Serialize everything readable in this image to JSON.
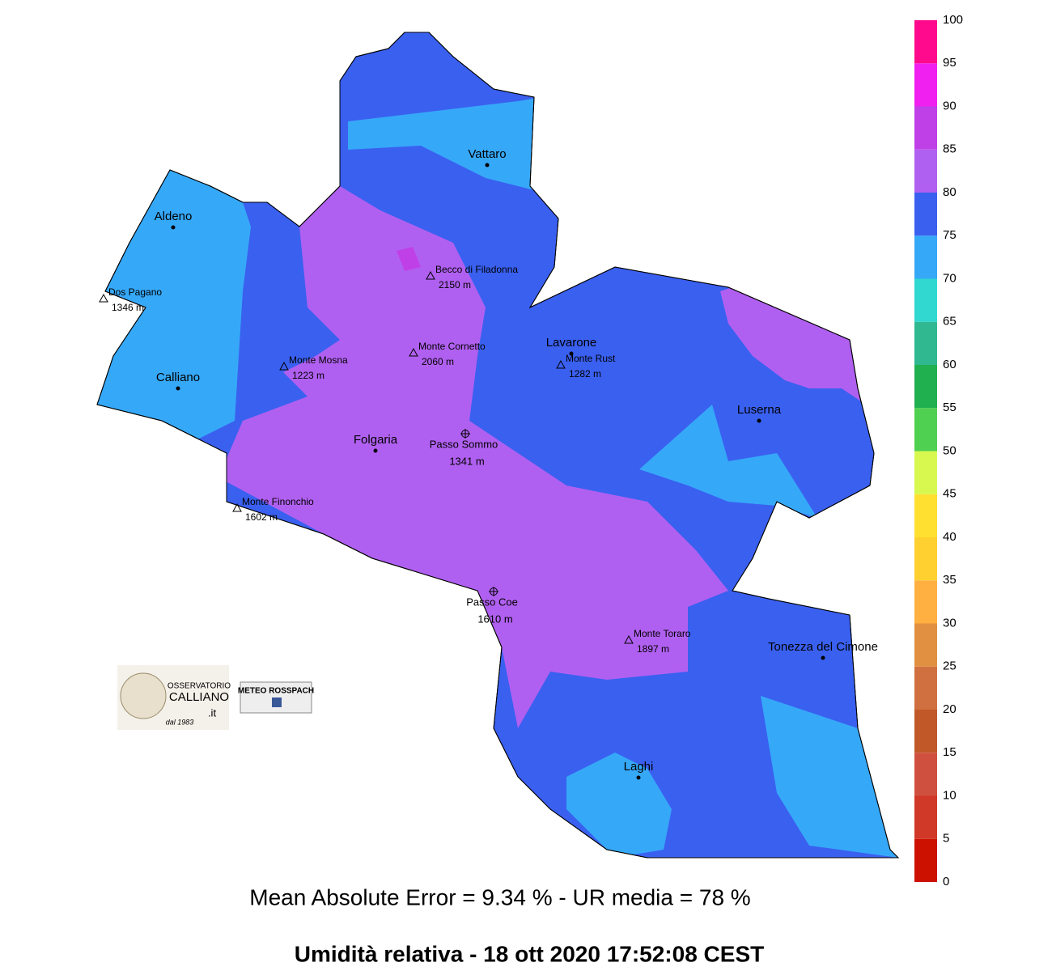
{
  "map": {
    "colorbar": {
      "ticks": [
        0,
        5,
        10,
        15,
        20,
        25,
        30,
        35,
        40,
        45,
        50,
        55,
        60,
        65,
        70,
        75,
        80,
        85,
        90,
        95,
        100
      ],
      "colors": [
        "#cc1100",
        "#d03828",
        "#d05040",
        "#c05828",
        "#d07040",
        "#e09040",
        "#ffb040",
        "#ffd030",
        "#ffe030",
        "#d8f850",
        "#50d050",
        "#20b050",
        "#30b890",
        "#30d8d0",
        "#36a8f8",
        "#3a60f0",
        "#b060f0",
        "#c040e8",
        "#f020f0",
        "#ff0a8c"
      ]
    },
    "places": [
      {
        "name": "Vattaro"
      },
      {
        "name": "Aldeno"
      },
      {
        "name": "Calliano"
      },
      {
        "name": "Folgaria"
      },
      {
        "name": "Lavarone"
      },
      {
        "name": "Luserna"
      },
      {
        "name": "Tonezza del Cimone"
      },
      {
        "name": "Laghi"
      }
    ],
    "peaks": [
      {
        "name": "Becco di Filadonna",
        "elevation": "2150 m"
      },
      {
        "name": "Dos Pagano",
        "elevation": "1346 m"
      },
      {
        "name": "Monte Cornetto",
        "elevation": "2060 m"
      },
      {
        "name": "Monte Mosna",
        "elevation": "1223 m"
      },
      {
        "name": "Monte Rust",
        "elevation": "1282 m"
      },
      {
        "name": "Monte Finonchio",
        "elevation": "1602 m"
      },
      {
        "name": "Monte Toraro",
        "elevation": "1897 m"
      }
    ],
    "passes": [
      {
        "name": "Passo Sommo",
        "elevation": "1341 m"
      },
      {
        "name": "Passo Coe",
        "elevation": "1610 m"
      }
    ]
  },
  "logos": {
    "observatory": [
      "OSSERVATORIO",
      "CALLIANO",
      ".it",
      "dal 1983"
    ],
    "facebook": "METEO ROSSPACH"
  },
  "stats": "Mean Absolute Error = 9.34 %  -  UR media = 78 %",
  "title": "Umidità relativa  -  18 ott 2020 17:52:08  CEST"
}
